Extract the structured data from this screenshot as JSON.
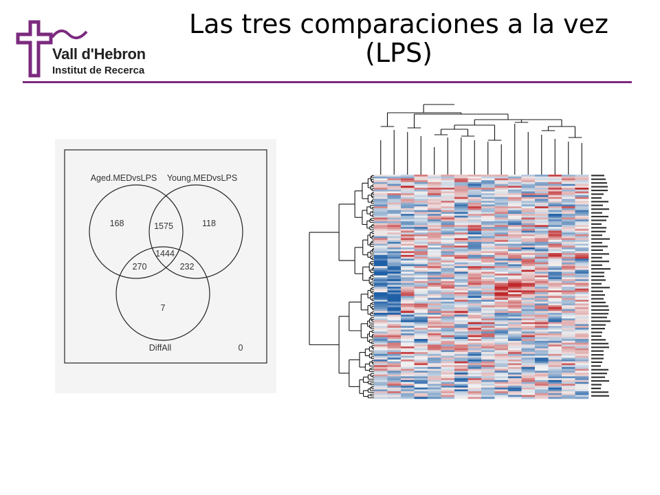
{
  "slide": {
    "title_line1": "Las tres comparaciones a la vez",
    "title_line2": "(LPS)"
  },
  "logo": {
    "name": "Vall d'Hebron",
    "subtitle": "Institut de Recerca",
    "color": "#7b2a7e"
  },
  "venn": {
    "set_a_label": "Aged.MEDvsLPS",
    "set_b_label": "Young.MEDvsLPS",
    "set_c_label": "DiffAll",
    "only_a": "168",
    "a_and_b": "1575",
    "only_b": "118",
    "a_and_c": "270",
    "all_three": "1444",
    "b_and_c": "232",
    "only_c": "7",
    "outside": "0"
  },
  "heatmap": {
    "n_columns": 16,
    "n_rows": 120,
    "palette": {
      "low": "#1f5fa6",
      "mid": "#f2f2f2",
      "high": "#c0282b"
    }
  }
}
